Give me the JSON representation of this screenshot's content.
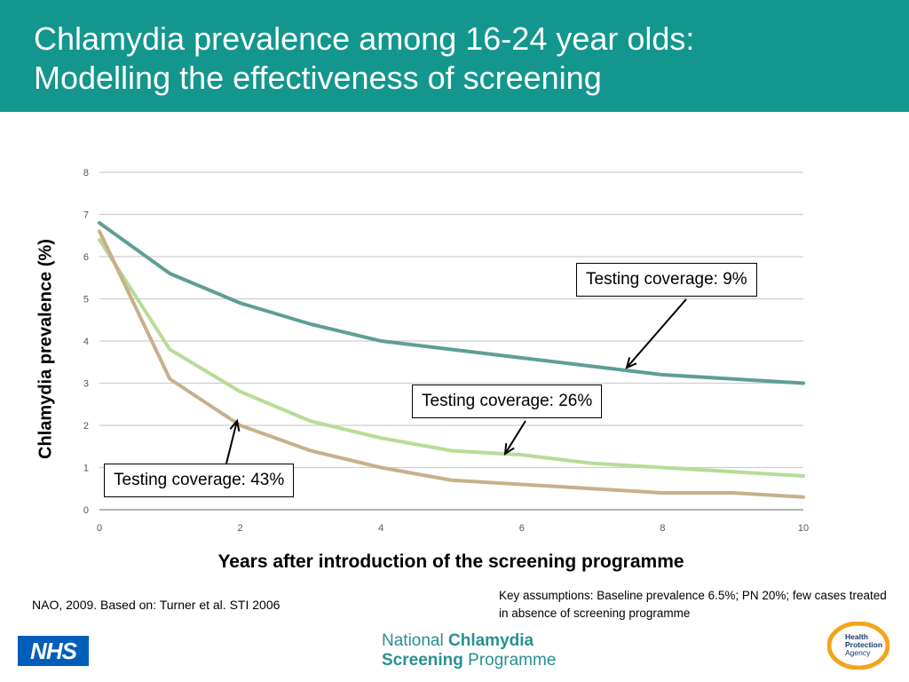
{
  "slide": {
    "title_line1": "Chlamydia prevalence among 16-24 year olds:",
    "title_line2": "Modelling the effectiveness of screening"
  },
  "callouts": {
    "c9": "Testing coverage: 9%",
    "c26": "Testing coverage: 26%",
    "c43": "Testing coverage: 43%"
  },
  "footer": {
    "source": "NAO, 2009. Based on: Turner et al. STI 2006",
    "assumptions": "Key assumptions: Baseline prevalence 6.5%; PN 20%; few cases treated in absence of screening programme",
    "nhs_logo": "NHS",
    "ncsp_line1_a": "National ",
    "ncsp_line1_b": "Chlamydia",
    "ncsp_line2_a": "Screening",
    "ncsp_line2_b": " Programme",
    "hpa_logo_line1": "Health",
    "hpa_logo_line2": "Protection",
    "hpa_logo_line3": "Agency"
  },
  "chart_data": {
    "type": "line",
    "title": "",
    "xlabel": "Years after introduction of the screening programme",
    "ylabel": "Chlamydia prevalence (%)",
    "xlim": [
      0,
      10
    ],
    "ylim": [
      0,
      8
    ],
    "xticks": [
      0,
      2,
      4,
      6,
      8,
      10
    ],
    "yticks": [
      0,
      1,
      2,
      3,
      4,
      5,
      6,
      7,
      8
    ],
    "grid": true,
    "x": [
      0,
      1,
      2,
      3,
      4,
      5,
      6,
      7,
      8,
      9,
      10
    ],
    "series": [
      {
        "name": "Testing coverage: 9%",
        "color": "#5e9e95",
        "values": [
          6.8,
          5.6,
          4.9,
          4.4,
          4.0,
          3.8,
          3.6,
          3.4,
          3.2,
          3.1,
          3.0
        ]
      },
      {
        "name": "Testing coverage: 26%",
        "color": "#b7dc97",
        "values": [
          6.4,
          3.8,
          2.8,
          2.1,
          1.7,
          1.4,
          1.3,
          1.1,
          1.0,
          0.9,
          0.8
        ]
      },
      {
        "name": "Testing coverage: 43%",
        "color": "#c7b08b",
        "values": [
          6.6,
          3.1,
          2.0,
          1.4,
          1.0,
          0.7,
          0.6,
          0.5,
          0.4,
          0.4,
          0.3
        ]
      }
    ]
  }
}
